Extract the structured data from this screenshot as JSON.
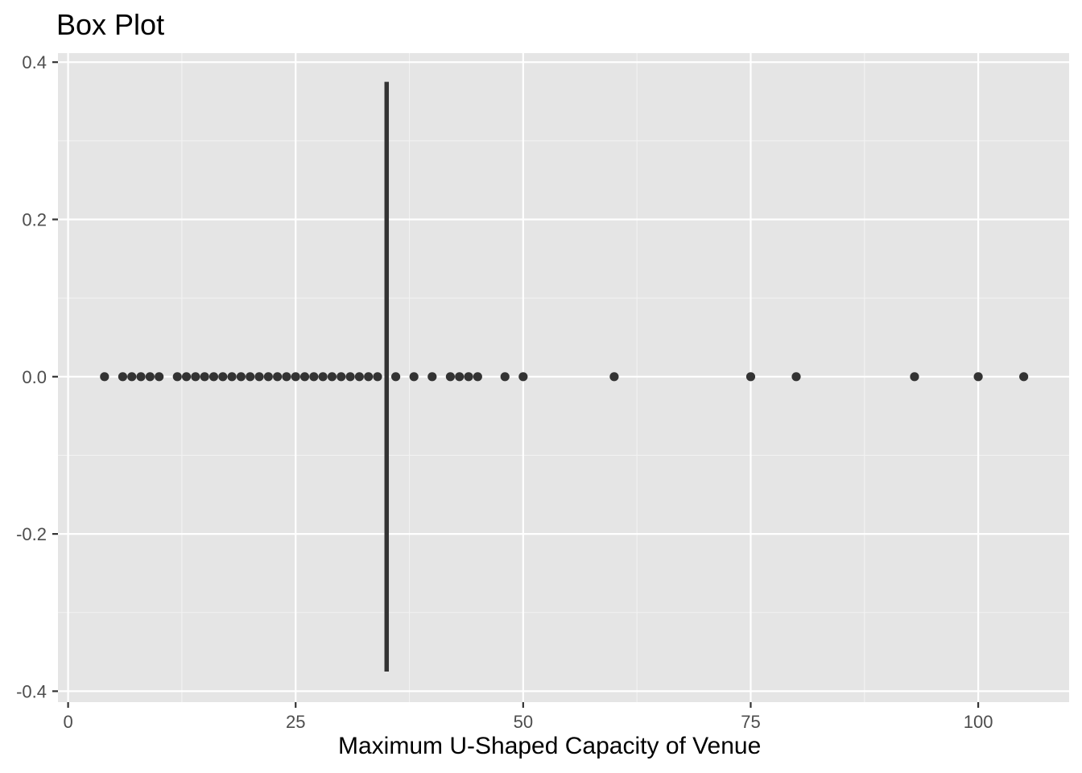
{
  "chart_data": {
    "type": "box",
    "title": "Box Plot",
    "xlabel": "Maximum U-Shaped Capacity of Venue",
    "ylabel": "",
    "xlim": [
      0,
      110
    ],
    "ylim": [
      -0.4,
      0.4
    ],
    "x_ticks": [
      0,
      25,
      50,
      75,
      100
    ],
    "x_tick_labels": [
      "0",
      "25",
      "50",
      "75",
      "100"
    ],
    "y_ticks": [
      -0.4,
      -0.2,
      0.0,
      0.2,
      0.4
    ],
    "y_tick_labels": [
      "-0.4",
      "-0.2",
      "0.0",
      "0.2",
      "0.4"
    ],
    "grid": true,
    "median": 35,
    "box_half_width": 0.375,
    "points_y": 0,
    "points_x": [
      4,
      6,
      7,
      8,
      9,
      10,
      12,
      13,
      14,
      15,
      16,
      17,
      18,
      19,
      20,
      21,
      22,
      23,
      24,
      25,
      26,
      27,
      28,
      29,
      30,
      31,
      32,
      33,
      34,
      36,
      38,
      40,
      42,
      43,
      44,
      45,
      48,
      50,
      60,
      75,
      80,
      93,
      100,
      105
    ],
    "colors": {
      "panel_background": "#e5e5e5",
      "grid_major": "#ffffff",
      "grid_minor": "#f2f2f2",
      "points": "#333333",
      "median_line": "#333333",
      "tick_label": "#4d4d4d",
      "tick_mark": "#333333"
    }
  }
}
